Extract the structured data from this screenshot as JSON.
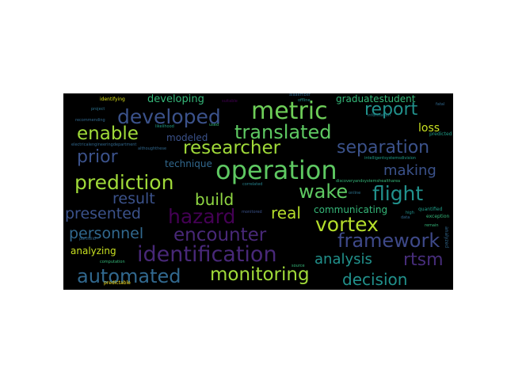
{
  "words": [
    {
      "text": "operation",
      "color": "#5ec962"
    },
    {
      "text": "metric",
      "color": "#6ece58"
    },
    {
      "text": "developed",
      "color": "#3b528b"
    },
    {
      "text": "translated",
      "color": "#5ec962"
    },
    {
      "text": "report",
      "color": "#21918c"
    },
    {
      "text": "enable",
      "color": "#a0da39"
    },
    {
      "text": "researcher",
      "color": "#a0da39"
    },
    {
      "text": "separation",
      "color": "#3b528b"
    },
    {
      "text": "prior",
      "color": "#3b528b"
    },
    {
      "text": "prediction",
      "color": "#a0da39"
    },
    {
      "text": "making",
      "color": "#3b528b"
    },
    {
      "text": "wake",
      "color": "#5ec962"
    },
    {
      "text": "flight",
      "color": "#21918c"
    },
    {
      "text": "build",
      "color": "#90d743"
    },
    {
      "text": "result",
      "color": "#3b528b"
    },
    {
      "text": "hazard",
      "color": "#440154"
    },
    {
      "text": "presented",
      "color": "#3b528b"
    },
    {
      "text": "real",
      "color": "#b5de2b"
    },
    {
      "text": "vortex",
      "color": "#b5de2b"
    },
    {
      "text": "encounter",
      "color": "#482878"
    },
    {
      "text": "personnel",
      "color": "#31688e"
    },
    {
      "text": "framework",
      "color": "#3e4989"
    },
    {
      "text": "identification",
      "color": "#482878"
    },
    {
      "text": "analysis",
      "color": "#21918c"
    },
    {
      "text": "rtsm",
      "color": "#472d7b"
    },
    {
      "text": "automated",
      "color": "#31688e"
    },
    {
      "text": "monitoring",
      "color": "#a0da39"
    },
    {
      "text": "decision",
      "color": "#21918c"
    },
    {
      "text": "developing",
      "color": "#35b779"
    },
    {
      "text": "graduatestudent",
      "color": "#35b779"
    },
    {
      "text": "loss",
      "color": "#c8e020"
    },
    {
      "text": "modeled",
      "color": "#3b528b"
    },
    {
      "text": "technique",
      "color": "#31688e"
    },
    {
      "text": "communicating",
      "color": "#35b779"
    },
    {
      "text": "analyzing",
      "color": "#c8e020"
    },
    {
      "text": "identifying",
      "color": "#dde318"
    },
    {
      "text": "recommending",
      "color": "#31688e"
    },
    {
      "text": "electricalengineeringdepartment",
      "color": "#31688e"
    },
    {
      "text": "likelihood",
      "color": "#1f9e89"
    },
    {
      "text": "project",
      "color": "#2c728e"
    },
    {
      "text": "portfolio",
      "color": "#31688e"
    },
    {
      "text": "predictable",
      "color": "#fde725"
    },
    {
      "text": "computation",
      "color": "#35b779"
    },
    {
      "text": "source",
      "color": "#35b779"
    },
    {
      "text": "correlated",
      "color": "#26828e"
    },
    {
      "text": "monitored",
      "color": "#3b528b"
    },
    {
      "text": "discoveryandsystemshealtharea",
      "color": "#35b779"
    },
    {
      "text": "intelligentsystemsdivision",
      "color": "#1f9e89"
    },
    {
      "text": "quantified",
      "color": "#1f9e89"
    },
    {
      "text": "exception",
      "color": "#35b779"
    },
    {
      "text": "high",
      "color": "#21918c"
    },
    {
      "text": "predicted",
      "color": "#1f9e89"
    },
    {
      "text": "fatal",
      "color": "#31688e"
    },
    {
      "text": "offline",
      "color": "#21918c"
    },
    {
      "text": "used",
      "color": "#35b779"
    },
    {
      "text": "online",
      "color": "#2c728e"
    },
    {
      "text": "information",
      "color": "#26828e"
    },
    {
      "text": "remain",
      "color": "#35b779"
    },
    {
      "text": "analyzed",
      "color": "#31688e"
    },
    {
      "text": "data",
      "color": "#31688e"
    },
    {
      "text": "suitable",
      "color": "#440154"
    },
    {
      "text": "aiaaember",
      "color": "#31688e"
    },
    {
      "text": "althoughthese",
      "color": "#31688e"
    }
  ]
}
